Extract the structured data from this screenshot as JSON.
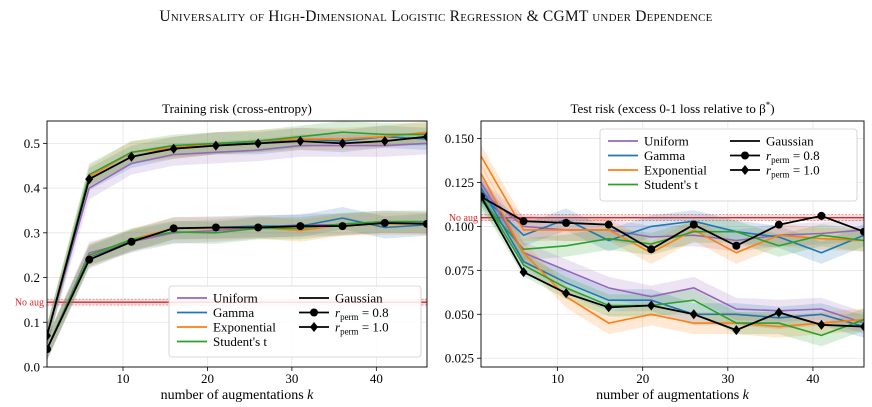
{
  "header": {
    "title": "Universality of High-Dimensional Logistic Regression & CGMT under Dependence"
  },
  "chart_data": [
    {
      "type": "line",
      "title": "Training risk (cross-entropy)",
      "xlabel": "number of augmentations k",
      "ylabel": "",
      "xlim": [
        1,
        46
      ],
      "ylim": [
        0.0,
        0.55
      ],
      "xticks": [
        10,
        20,
        30,
        40
      ],
      "yticks": [
        0.0,
        0.1,
        0.2,
        0.3,
        0.4,
        0.5
      ],
      "xtick_labels": [
        "10",
        "20",
        "30",
        "40"
      ],
      "ytick_labels": [
        "0.0",
        "0.1",
        "0.2",
        "0.3",
        "0.4",
        "0.5"
      ],
      "grid": true,
      "legend_position": "lower-right",
      "x": [
        1,
        6,
        11,
        16,
        21,
        26,
        31,
        36,
        41,
        46
      ],
      "reference_line": {
        "label": "No aug",
        "value": 0.145,
        "color": "#d62728"
      },
      "groups": [
        {
          "r_perm": 0.8,
          "series": [
            {
              "name": "Uniform",
              "color": "#9467bd",
              "values": [
                0.04,
                0.255,
                0.28,
                0.3,
                0.305,
                0.312,
                0.318,
                0.318,
                0.325,
                0.322
              ]
            },
            {
              "name": "Gamma",
              "color": "#1f77b4",
              "values": [
                0.04,
                0.245,
                0.282,
                0.31,
                0.312,
                0.315,
                0.315,
                0.333,
                0.312,
                0.318
              ]
            },
            {
              "name": "Exponential",
              "color": "#ff7f0e",
              "values": [
                0.04,
                0.248,
                0.285,
                0.31,
                0.31,
                0.312,
                0.305,
                0.318,
                0.32,
                0.32
              ]
            },
            {
              "name": "Student's t",
              "color": "#2ca02c",
              "values": [
                0.04,
                0.25,
                0.285,
                0.302,
                0.3,
                0.31,
                0.31,
                0.32,
                0.325,
                0.325
              ]
            },
            {
              "name": "Gaussian",
              "color": "#000000",
              "marker": "circle",
              "values": [
                0.04,
                0.24,
                0.28,
                0.31,
                0.312,
                0.312,
                0.315,
                0.315,
                0.322,
                0.32
              ]
            }
          ]
        },
        {
          "r_perm": 1.0,
          "series": [
            {
              "name": "Uniform",
              "color": "#9467bd",
              "values": [
                0.07,
                0.4,
                0.455,
                0.475,
                0.48,
                0.485,
                0.495,
                0.495,
                0.495,
                0.5
              ]
            },
            {
              "name": "Gamma",
              "color": "#1f77b4",
              "values": [
                0.07,
                0.42,
                0.47,
                0.49,
                0.5,
                0.5,
                0.51,
                0.505,
                0.515,
                0.51
              ]
            },
            {
              "name": "Exponential",
              "color": "#ff7f0e",
              "values": [
                0.07,
                0.425,
                0.48,
                0.49,
                0.5,
                0.505,
                0.51,
                0.51,
                0.515,
                0.525
              ]
            },
            {
              "name": "Student's t",
              "color": "#2ca02c",
              "values": [
                0.07,
                0.43,
                0.48,
                0.495,
                0.5,
                0.505,
                0.515,
                0.525,
                0.52,
                0.52
              ]
            },
            {
              "name": "Gaussian",
              "color": "#000000",
              "marker": "diamond",
              "values": [
                0.07,
                0.42,
                0.47,
                0.488,
                0.495,
                0.5,
                0.505,
                0.5,
                0.505,
                0.515
              ]
            }
          ]
        }
      ],
      "legend": {
        "entries": [
          "Uniform",
          "Gamma",
          "Exponential",
          "Student's t",
          "Gaussian",
          "r_perm = 0.8",
          "r_perm = 1.0"
        ]
      }
    },
    {
      "type": "line",
      "title": "Test risk (excess 0-1 loss relative to β*)",
      "xlabel": "number of augmentations k",
      "ylabel": "",
      "xlim": [
        1,
        46
      ],
      "ylim": [
        0.02,
        0.16
      ],
      "xticks": [
        10,
        20,
        30,
        40
      ],
      "yticks": [
        0.025,
        0.05,
        0.075,
        0.1,
        0.125,
        0.15
      ],
      "xtick_labels": [
        "10",
        "20",
        "30",
        "40"
      ],
      "ytick_labels": [
        "0.025",
        "0.050",
        "0.075",
        "0.100",
        "0.125",
        "0.150"
      ],
      "grid": true,
      "legend_position": "top-right",
      "x": [
        1,
        6,
        11,
        16,
        21,
        26,
        31,
        36,
        41,
        46
      ],
      "reference_line": {
        "label": "No aug",
        "value": 0.105,
        "color": "#d62728"
      },
      "groups": [
        {
          "r_perm": 0.8,
          "series": [
            {
              "name": "Uniform",
              "color": "#9467bd",
              "values": [
                0.12,
                0.1,
                0.098,
                0.098,
                0.094,
                0.095,
                0.092,
                0.095,
                0.096,
                0.098
              ]
            },
            {
              "name": "Gamma",
              "color": "#1f77b4",
              "values": [
                0.118,
                0.095,
                0.104,
                0.092,
                0.1,
                0.103,
                0.097,
                0.094,
                0.085,
                0.095
              ]
            },
            {
              "name": "Exponential",
              "color": "#ff7f0e",
              "values": [
                0.14,
                0.098,
                0.098,
                0.098,
                0.085,
                0.098,
                0.085,
                0.095,
                0.093,
                0.092
              ]
            },
            {
              "name": "Student's t",
              "color": "#2ca02c",
              "values": [
                0.115,
                0.087,
                0.089,
                0.093,
                0.09,
                0.097,
                0.097,
                0.089,
                0.095,
                0.092
              ]
            },
            {
              "name": "Gaussian",
              "color": "#000000",
              "marker": "circle",
              "values": [
                0.117,
                0.103,
                0.102,
                0.101,
                0.087,
                0.101,
                0.089,
                0.101,
                0.106,
                0.097
              ]
            }
          ]
        },
        {
          "r_perm": 1.0,
          "series": [
            {
              "name": "Uniform",
              "color": "#9467bd",
              "values": [
                0.125,
                0.085,
                0.075,
                0.065,
                0.06,
                0.065,
                0.053,
                0.052,
                0.053,
                0.045
              ]
            },
            {
              "name": "Gamma",
              "color": "#1f77b4",
              "values": [
                0.122,
                0.08,
                0.068,
                0.058,
                0.058,
                0.05,
                0.05,
                0.048,
                0.05,
                0.043
              ]
            },
            {
              "name": "Exponential",
              "color": "#ff7f0e",
              "values": [
                0.13,
                0.085,
                0.06,
                0.045,
                0.05,
                0.045,
                0.045,
                0.043,
                0.045,
                0.047
              ]
            },
            {
              "name": "Student's t",
              "color": "#2ca02c",
              "values": [
                0.118,
                0.078,
                0.065,
                0.055,
                0.055,
                0.058,
                0.045,
                0.045,
                0.038,
                0.047
              ]
            },
            {
              "name": "Gaussian",
              "color": "#000000",
              "marker": "diamond",
              "values": [
                0.117,
                0.074,
                0.062,
                0.054,
                0.055,
                0.05,
                0.041,
                0.051,
                0.044,
                0.043
              ]
            }
          ]
        }
      ],
      "legend": {
        "entries": [
          "Uniform",
          "Gamma",
          "Exponential",
          "Student's t",
          "Gaussian",
          "r_perm = 0.8",
          "r_perm = 1.0"
        ]
      }
    }
  ]
}
